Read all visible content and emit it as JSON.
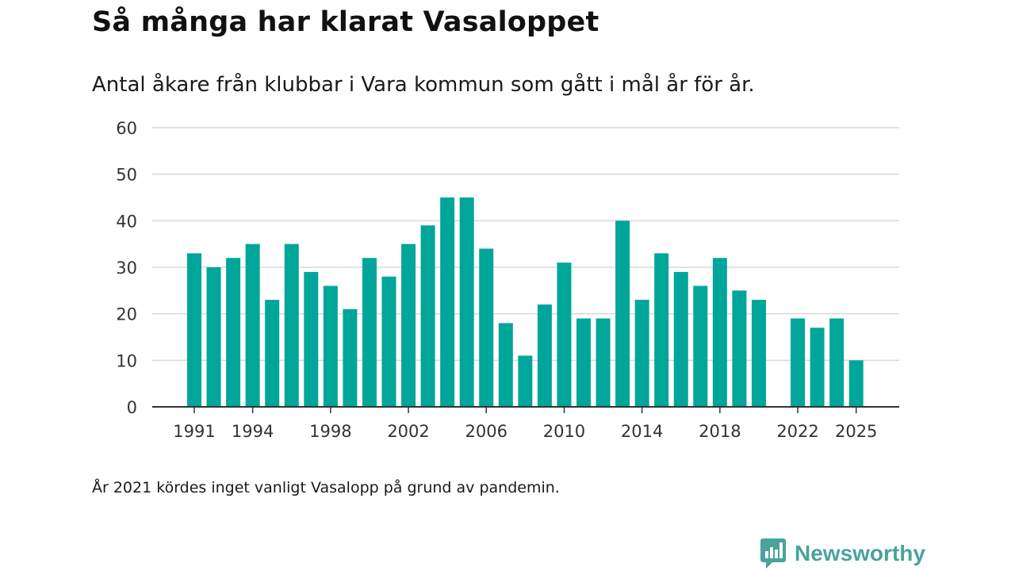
{
  "title": "Så många har klarat Vasaloppet",
  "subtitle": "Antal åkare från klubbar i Vara kommun som gått i mål år för år.",
  "note": "År 2021 kördes inget vanligt Vasalopp på grund av pandemin.",
  "brand": {
    "name": "Newsworthy",
    "icon": "newsworthy-logo-icon",
    "color": "#4aa39c"
  },
  "colors": {
    "bar": "#00a69a",
    "grid": "#d9d9d9",
    "axis": "#333333"
  },
  "chart_data": {
    "type": "bar",
    "title": "Så många har klarat Vasaloppet",
    "xlabel": "",
    "ylabel": "",
    "ylim": [
      0,
      60
    ],
    "yticks": [
      0,
      10,
      20,
      30,
      40,
      50,
      60
    ],
    "xtick_labels": [
      "1991",
      "1994",
      "1998",
      "2002",
      "2006",
      "2010",
      "2014",
      "2018",
      "2022",
      "2025"
    ],
    "categories": [
      1991,
      1992,
      1993,
      1994,
      1995,
      1996,
      1997,
      1998,
      1999,
      2000,
      2001,
      2002,
      2003,
      2004,
      2005,
      2006,
      2007,
      2008,
      2009,
      2010,
      2011,
      2012,
      2013,
      2014,
      2015,
      2016,
      2017,
      2018,
      2019,
      2020,
      2021,
      2022,
      2023,
      2024,
      2025
    ],
    "values": [
      33,
      30,
      32,
      35,
      23,
      35,
      29,
      26,
      21,
      32,
      28,
      35,
      39,
      45,
      45,
      34,
      18,
      11,
      22,
      31,
      19,
      19,
      40,
      23,
      33,
      29,
      26,
      32,
      25,
      23,
      null,
      19,
      17,
      19,
      10
    ],
    "grid": true
  }
}
